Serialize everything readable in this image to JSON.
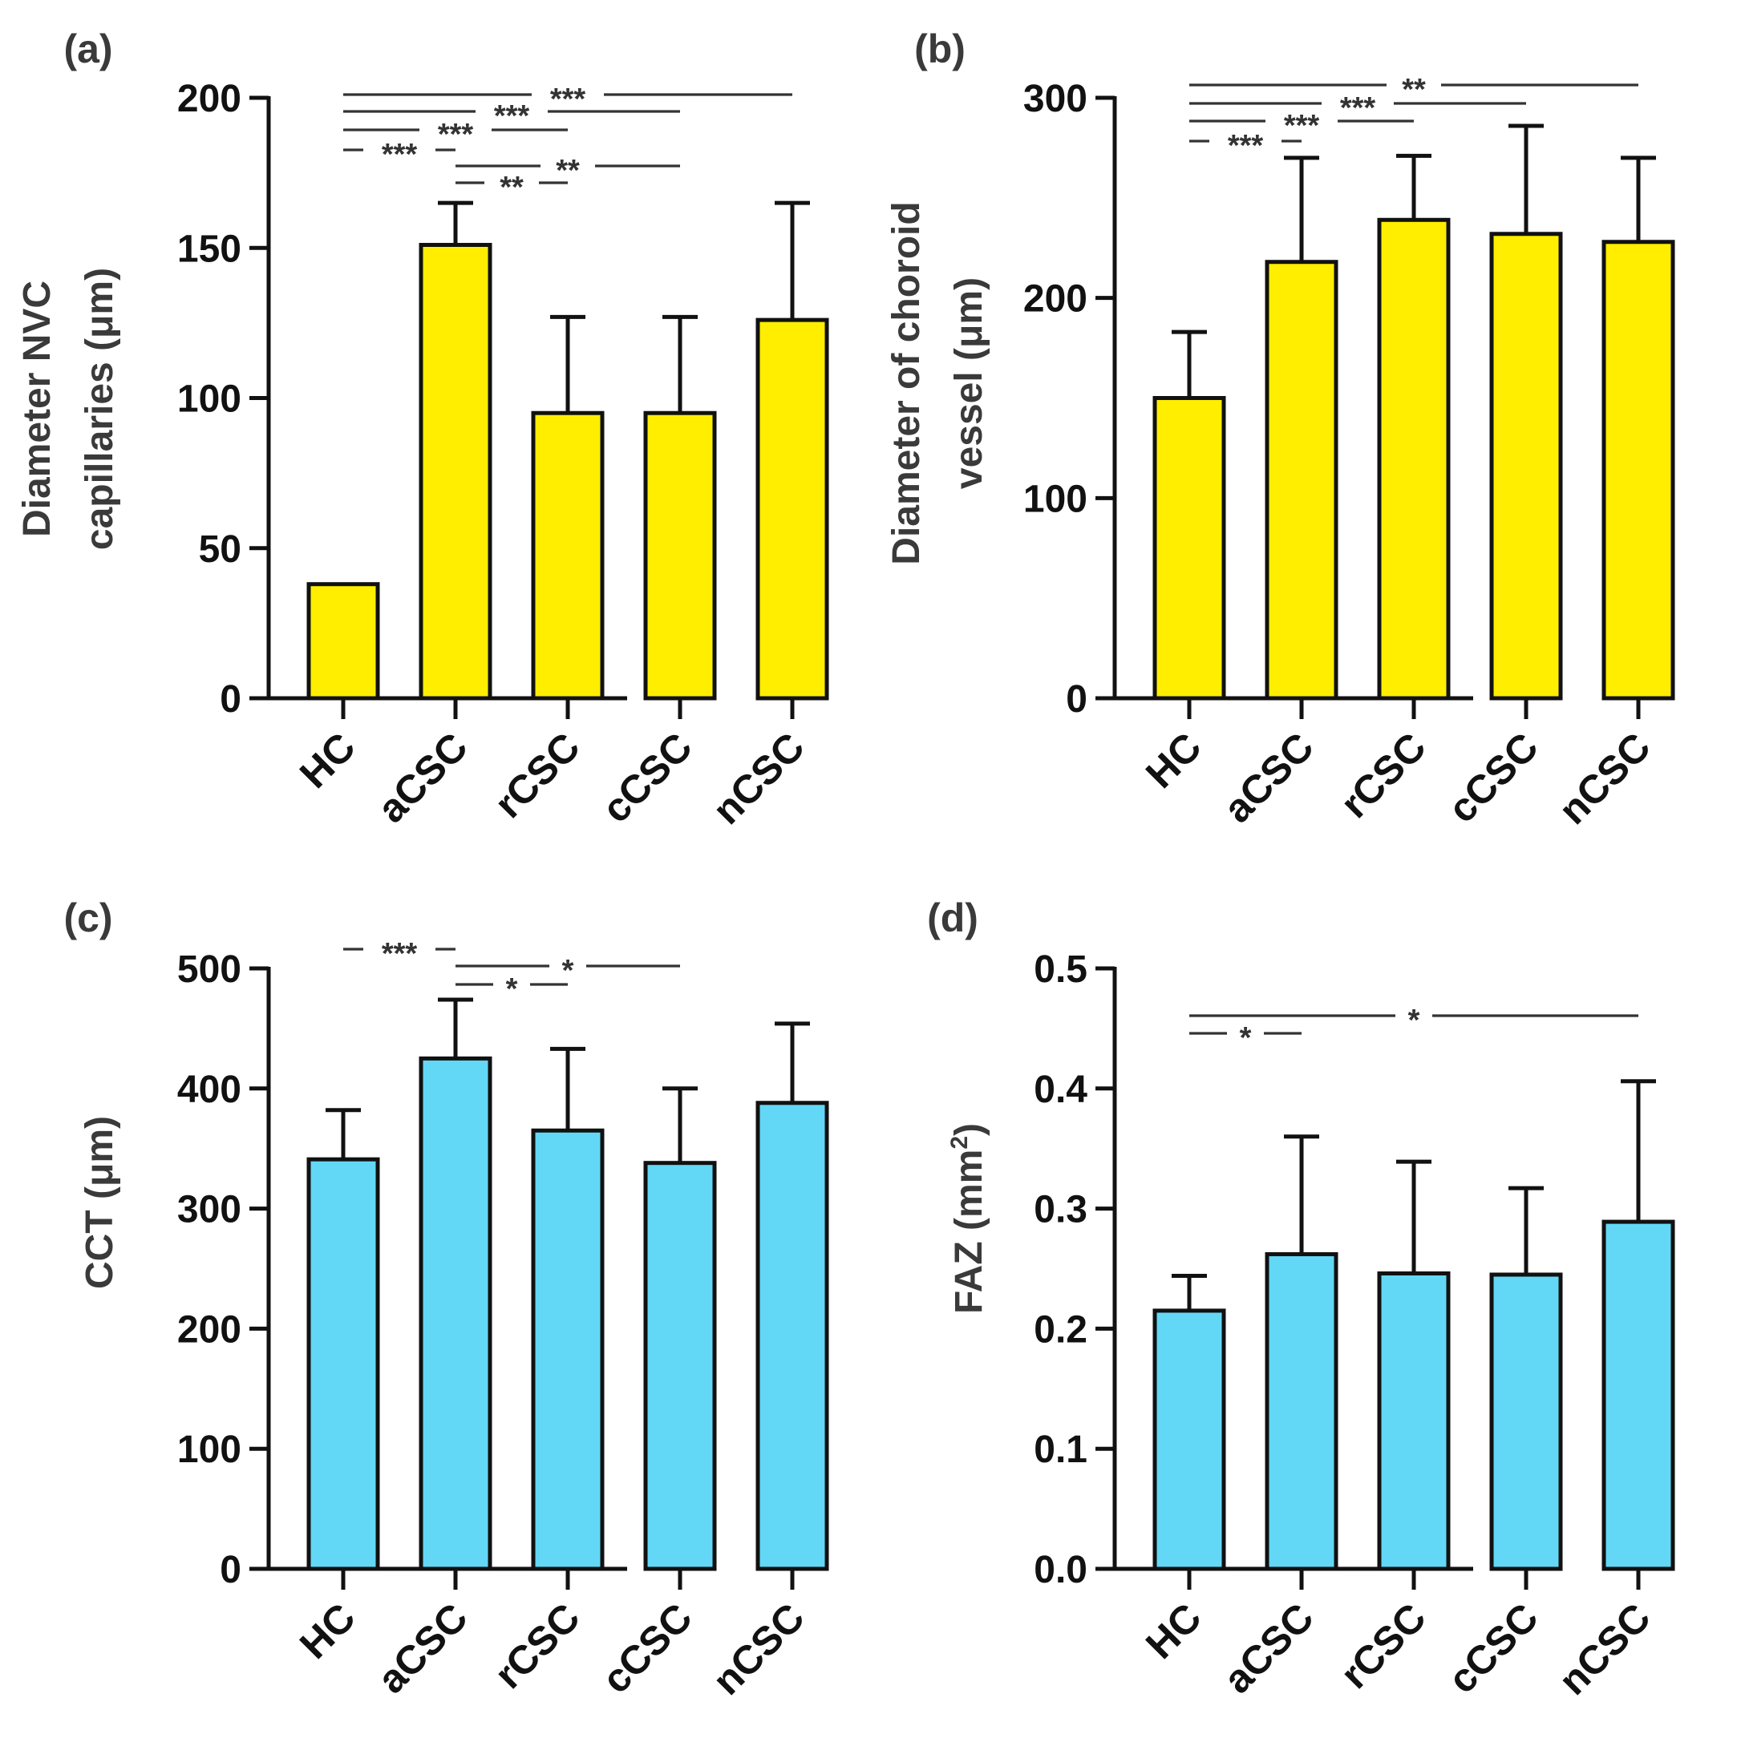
{
  "chart_data": [
    {
      "panel": "(a)",
      "type": "bar",
      "ylabel_lines": [
        "Diameter NVC",
        "capillaries (μm)"
      ],
      "categories": [
        "HC",
        "aCSC",
        "rCSC",
        "cCSC",
        "nCSC"
      ],
      "values": [
        38,
        151,
        95,
        95,
        126
      ],
      "errors": [
        0,
        14,
        32,
        32,
        39
      ],
      "ylim": [
        0,
        200
      ],
      "yticks": [
        "0",
        "50",
        "100",
        "150",
        "200"
      ],
      "ytick_values": [
        0,
        50,
        100,
        150,
        200
      ],
      "fill": "#ffee00",
      "significance": [
        {
          "from": 0,
          "to": 4,
          "label": "***"
        },
        {
          "from": 0,
          "to": 3,
          "label": "***"
        },
        {
          "from": 0,
          "to": 2,
          "label": "***"
        },
        {
          "from": 0,
          "to": 1,
          "label": "***"
        },
        {
          "from": 1,
          "to": 3,
          "label": "**"
        },
        {
          "from": 1,
          "to": 2,
          "label": "**"
        }
      ]
    },
    {
      "panel": "(b)",
      "type": "bar",
      "ylabel_lines": [
        "Diameter of choroid",
        "vessel (μm)"
      ],
      "categories": [
        "HC",
        "aCSC",
        "rCSC",
        "cCSC",
        "nCSC"
      ],
      "values": [
        150,
        218,
        239,
        232,
        228
      ],
      "errors": [
        33,
        52,
        32,
        54,
        42
      ],
      "ylim": [
        0,
        300
      ],
      "yticks": [
        "0",
        "100",
        "200",
        "300"
      ],
      "ytick_values": [
        0,
        100,
        200,
        300
      ],
      "fill": "#ffee00",
      "significance": [
        {
          "from": 0,
          "to": 4,
          "label": "**"
        },
        {
          "from": 0,
          "to": 3,
          "label": "***"
        },
        {
          "from": 0,
          "to": 2,
          "label": "***"
        },
        {
          "from": 0,
          "to": 1,
          "label": "***"
        }
      ]
    },
    {
      "panel": "(c)",
      "type": "bar",
      "ylabel_lines": [
        "CCT (μm)"
      ],
      "categories": [
        "HC",
        "aCSC",
        "rCSC",
        "cCSC",
        "nCSC"
      ],
      "values": [
        341,
        425,
        365,
        338,
        388
      ],
      "errors": [
        41,
        49,
        68,
        62,
        66
      ],
      "ylim": [
        0,
        500
      ],
      "yticks": [
        "0",
        "100",
        "200",
        "300",
        "400",
        "500"
      ],
      "ytick_values": [
        0,
        100,
        200,
        300,
        400,
        500
      ],
      "fill": "#62d8f6",
      "significance": [
        {
          "from": 0,
          "to": 1,
          "label": "***"
        },
        {
          "from": 1,
          "to": 3,
          "label": "*"
        },
        {
          "from": 1,
          "to": 2,
          "label": "*"
        }
      ]
    },
    {
      "panel": "(d)",
      "type": "bar",
      "ylabel_main": "FAZ (mm",
      "ylabel_sup": "2",
      "ylabel_end": ")",
      "categories": [
        "HC",
        "aCSC",
        "rCSC",
        "cCSC",
        "nCSC"
      ],
      "values": [
        0.215,
        0.262,
        0.246,
        0.245,
        0.289
      ],
      "errors": [
        0.029,
        0.098,
        0.093,
        0.072,
        0.117
      ],
      "ylim": [
        0,
        0.5
      ],
      "yticks": [
        "0.0",
        "0.1",
        "0.2",
        "0.3",
        "0.4",
        "0.5"
      ],
      "ytick_values": [
        0,
        0.1,
        0.2,
        0.3,
        0.4,
        0.5
      ],
      "fill": "#62d8f6",
      "significance": [
        {
          "from": 0,
          "to": 4,
          "label": "*"
        },
        {
          "from": 0,
          "to": 1,
          "label": "*"
        }
      ]
    }
  ]
}
